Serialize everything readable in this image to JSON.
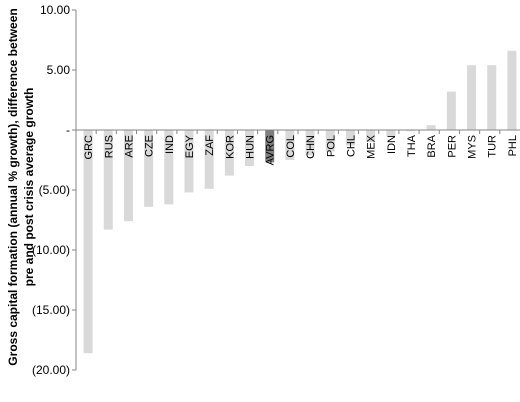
{
  "chart_data": {
    "type": "bar",
    "ylabel_lines": [
      "Gross capital formation (annual % growth), difference between",
      "pre and post crisis average growth"
    ],
    "ylim": [
      -20,
      10
    ],
    "yticks": [
      {
        "value": 10,
        "label": "10.00"
      },
      {
        "value": 5,
        "label": "5.00"
      },
      {
        "value": 0,
        "label": "-"
      },
      {
        "value": -5,
        "label": "(5.00)"
      },
      {
        "value": -10,
        "label": "(10.00)"
      },
      {
        "value": -15,
        "label": "(15.00)"
      },
      {
        "value": -20,
        "label": "(20.00)"
      }
    ],
    "categories": [
      "GRC",
      "RUS",
      "ARE",
      "CZE",
      "IND",
      "EGY",
      "ZAF",
      "KOR",
      "HUN",
      "AVRG",
      "COL",
      "CHN",
      "POL",
      "CHL",
      "MEX",
      "IDN",
      "THA",
      "BRA",
      "PER",
      "MYS",
      "TUR",
      "PHL"
    ],
    "values": [
      -18.6,
      -8.3,
      -7.6,
      -6.4,
      -6.2,
      -5.2,
      -4.9,
      -3.8,
      -3.0,
      -2.7,
      -2.5,
      -2.1,
      -1.8,
      -1.3,
      -1.0,
      -0.5,
      -0.1,
      0.4,
      3.2,
      5.4,
      5.4,
      6.6
    ],
    "highlight": "AVRG",
    "colors": {
      "bar": "#d9d9d9",
      "highlight": "#7f7f7f",
      "axis": "#868686"
    },
    "grid": false,
    "legend": "none"
  }
}
